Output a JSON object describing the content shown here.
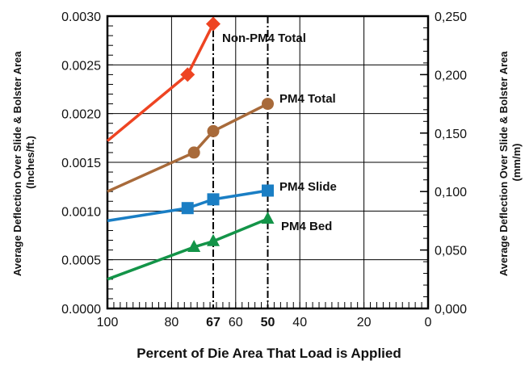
{
  "chart_data": {
    "type": "line",
    "xlabel": "Percent of Die Area That Load is Applied",
    "ylabel_left_lines": [
      "Average Deflection Over Slide & Bolster Area",
      "(Inches/ft.)"
    ],
    "ylabel_right_lines": [
      "Average Deflection Over Slide & Bolster Area",
      "(mm/m)"
    ],
    "xlim": [
      100,
      0
    ],
    "ylim": [
      0,
      0.003
    ],
    "ylim_right": [
      0,
      0.25
    ],
    "x_ticks": [
      {
        "value": 100,
        "label": "100",
        "bold": false
      },
      {
        "value": 80,
        "label": "80",
        "bold": false
      },
      {
        "value": 67,
        "label": "67",
        "bold": true
      },
      {
        "value": 60,
        "label": "60",
        "bold": false
      },
      {
        "value": 50,
        "label": "50",
        "bold": true
      },
      {
        "value": 40,
        "label": "40",
        "bold": false
      },
      {
        "value": 20,
        "label": "20",
        "bold": false
      },
      {
        "value": 0,
        "label": "0",
        "bold": false
      }
    ],
    "y_ticks_left": [
      {
        "value": 0.0,
        "label": "0.0000"
      },
      {
        "value": 0.0005,
        "label": "0.0005"
      },
      {
        "value": 0.001,
        "label": "0.0010"
      },
      {
        "value": 0.0015,
        "label": "0.0015"
      },
      {
        "value": 0.002,
        "label": "0.0020"
      },
      {
        "value": 0.0025,
        "label": "0.0025"
      },
      {
        "value": 0.003,
        "label": "0.0030"
      }
    ],
    "y_ticks_right": [
      {
        "value": 0.0,
        "label": "0,000"
      },
      {
        "value": 0.05,
        "label": "0,050"
      },
      {
        "value": 0.1,
        "label": "0,100"
      },
      {
        "value": 0.15,
        "label": "0,150"
      },
      {
        "value": 0.2,
        "label": "0,200"
      },
      {
        "value": 0.25,
        "label": "0,250"
      }
    ],
    "reference_lines_x": [
      67,
      50
    ],
    "grid": true,
    "series": [
      {
        "name": "Non-PM4 Total",
        "color": "#ee4422",
        "marker": "diamond",
        "x": [
          100,
          75,
          67
        ],
        "y": [
          0.00172,
          0.0024,
          0.00292
        ],
        "marker_x": [
          75,
          67
        ]
      },
      {
        "name": "PM4 Total",
        "color": "#a86a3a",
        "marker": "circle",
        "x": [
          100,
          73,
          67,
          50
        ],
        "y": [
          0.0012,
          0.0016,
          0.00182,
          0.0021
        ],
        "marker_x": [
          73,
          67,
          50
        ]
      },
      {
        "name": "PM4 Slide",
        "color": "#1a7ec4",
        "marker": "square",
        "x": [
          100,
          75,
          67,
          50
        ],
        "y": [
          0.0009,
          0.00103,
          0.00112,
          0.00121
        ],
        "marker_x": [
          75,
          67,
          50
        ]
      },
      {
        "name": "PM4 Bed",
        "color": "#139448",
        "marker": "triangle",
        "x": [
          100,
          73,
          67,
          50
        ],
        "y": [
          0.0003,
          0.00063,
          0.00069,
          0.00092
        ],
        "marker_x": [
          73,
          67,
          50
        ]
      }
    ]
  }
}
